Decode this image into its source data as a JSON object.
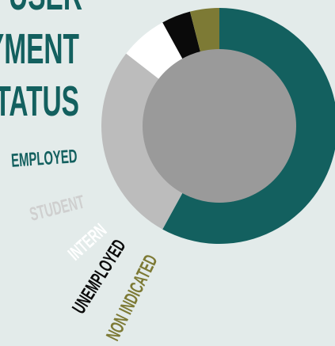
{
  "chart_data": {
    "type": "donut",
    "title": [
      "USER",
      "EMPLOYMENT",
      "STATUS"
    ],
    "categories": [
      "EMPLOYED",
      "STUDENT",
      "INTERN",
      "UNEMPLOYED",
      "NON INDICATED"
    ],
    "values": [
      58,
      27.5,
      6.5,
      4,
      4
    ],
    "colors": [
      "#13605f",
      "#bcbcbc",
      "#ffffff",
      "#0a0a0a",
      "#7d7a35"
    ],
    "label_colors": [
      "#13605f",
      "#cfcfcf",
      "#ffffff",
      "#0a0a0a",
      "#7d7a35"
    ],
    "center_color": "#9a9a9a"
  }
}
